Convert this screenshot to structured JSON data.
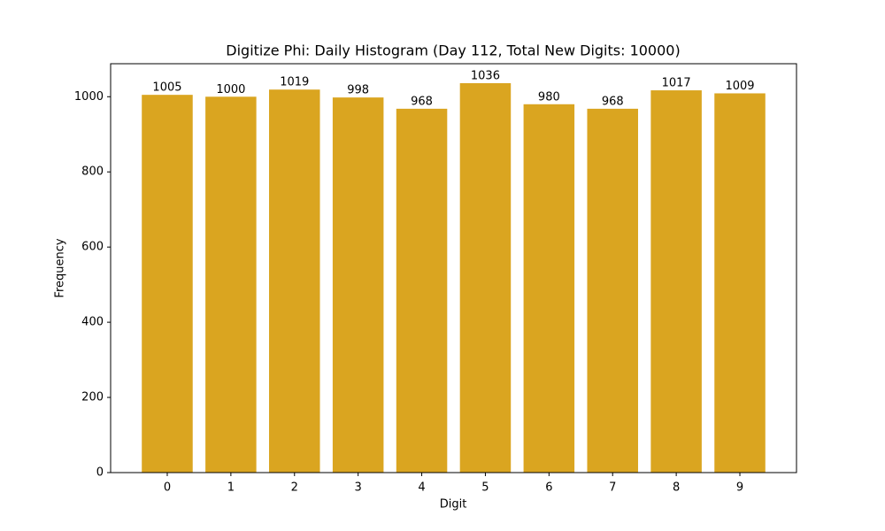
{
  "chart_data": {
    "type": "bar",
    "title": "Digitize Phi: Daily Histogram (Day 112, Total New Digits: 10000)",
    "x_label": "Digit",
    "y_label": "Frequency",
    "categories": [
      "0",
      "1",
      "2",
      "3",
      "4",
      "5",
      "6",
      "7",
      "8",
      "9"
    ],
    "values": [
      1005,
      1000,
      1019,
      998,
      968,
      1036,
      980,
      968,
      1017,
      1009
    ],
    "color": "#daa520",
    "ylim": [
      0,
      1087.8
    ],
    "yticks": [
      0,
      200,
      400,
      600,
      800,
      1000
    ],
    "grid": false
  }
}
